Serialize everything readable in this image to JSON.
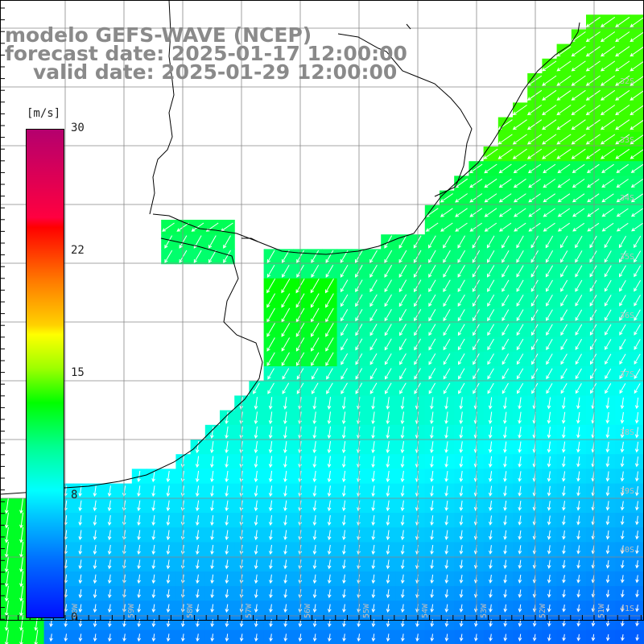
{
  "title": {
    "model": "modelo GEFS-WAVE (NCEP)",
    "forecast": "forecast date: 2025-01-17 12:00:00",
    "valid": "valid date: 2025-01-29 12:00:00"
  },
  "colorbar": {
    "unit": "[m/s]",
    "ticks": [
      "30",
      "22",
      "15",
      "8",
      "0"
    ],
    "min": 0,
    "max": 30
  },
  "lat_labels": [
    "32S",
    "33S",
    "34S",
    "35S",
    "36S",
    "37S",
    "38S",
    "39S",
    "40S",
    "41S"
  ],
  "lon_labels": [
    "60W",
    "59W",
    "58W",
    "57W",
    "56W",
    "55W",
    "54W",
    "53W",
    "52W",
    "51W"
  ],
  "colors": {
    "land": "#ffffff",
    "grid": "#888888",
    "coast": "#000000",
    "arrow": "#ffffff",
    "title": "#8a8a8a"
  }
}
